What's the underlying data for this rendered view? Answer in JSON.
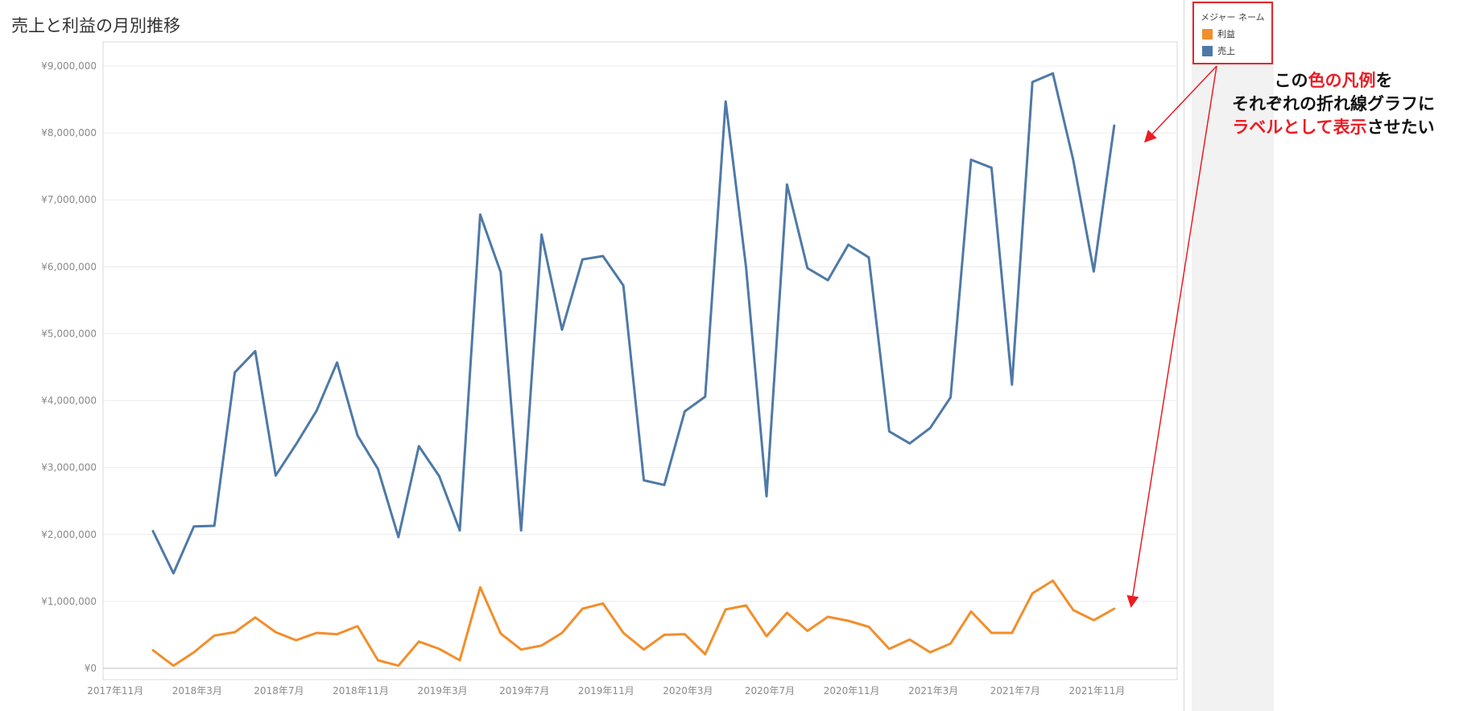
{
  "chart_data": {
    "type": "line",
    "title": "売上と利益の月別推移",
    "x_tick_labels": [
      "2017年11月",
      "2018年3月",
      "2018年7月",
      "2018年11月",
      "2019年3月",
      "2019年7月",
      "2019年11月",
      "2020年3月",
      "2020年7月",
      "2020年11月",
      "2021年3月",
      "2021年7月",
      "2021年11月"
    ],
    "y_tick_labels": [
      "¥9,000,000",
      "¥8,000,000",
      "¥7,000,000",
      "¥6,000,000",
      "¥5,000,000",
      "¥4,000,000",
      "¥3,000,000",
      "¥2,000,000",
      "¥1,000,000",
      "¥0"
    ],
    "y_ticks": [
      9000000,
      8000000,
      7000000,
      6000000,
      5000000,
      4000000,
      3000000,
      2000000,
      1000000,
      0
    ],
    "ylim": [
      0,
      9200000
    ],
    "months": [
      "2018-01",
      "2018-02",
      "2018-03",
      "2018-04",
      "2018-05",
      "2018-06",
      "2018-07",
      "2018-08",
      "2018-09",
      "2018-10",
      "2018-11",
      "2018-12",
      "2019-01",
      "2019-02",
      "2019-03",
      "2019-04",
      "2019-05",
      "2019-06",
      "2019-07",
      "2019-08",
      "2019-09",
      "2019-10",
      "2019-11",
      "2019-12",
      "2020-01",
      "2020-02",
      "2020-03",
      "2020-04",
      "2020-05",
      "2020-06",
      "2020-07",
      "2020-08",
      "2020-09",
      "2020-10",
      "2020-11",
      "2020-12",
      "2021-01",
      "2021-02",
      "2021-03",
      "2021-04",
      "2021-05",
      "2021-06",
      "2021-07",
      "2021-08",
      "2021-09",
      "2021-10",
      "2021-11",
      "2021-12"
    ],
    "series": [
      {
        "name": "売上",
        "color": "#4e79a7",
        "values": [
          2050000,
          1420000,
          2120000,
          2130000,
          4420000,
          4740000,
          2880000,
          3350000,
          3850000,
          4570000,
          3480000,
          2980000,
          1960000,
          3320000,
          2870000,
          2060000,
          6780000,
          5920000,
          2060000,
          6480000,
          5060000,
          6110000,
          6160000,
          5720000,
          2810000,
          2740000,
          3840000,
          4060000,
          8470000,
          5990000,
          2570000,
          7230000,
          5980000,
          5800000,
          6330000,
          6140000,
          3540000,
          3360000,
          3590000,
          4050000,
          7600000,
          7480000,
          4240000,
          8760000,
          8890000,
          7590000,
          5930000,
          8110000
        ]
      },
      {
        "name": "利益",
        "color": "#f28e2b",
        "values": [
          270000,
          40000,
          240000,
          490000,
          540000,
          760000,
          540000,
          420000,
          530000,
          510000,
          630000,
          120000,
          40000,
          400000,
          290000,
          120000,
          1210000,
          520000,
          280000,
          340000,
          530000,
          890000,
          970000,
          530000,
          280000,
          500000,
          510000,
          210000,
          880000,
          940000,
          480000,
          830000,
          560000,
          770000,
          710000,
          620000,
          290000,
          430000,
          240000,
          370000,
          850000,
          530000,
          530000,
          1120000,
          1310000,
          870000,
          720000,
          890000
        ]
      }
    ],
    "legend": {
      "title": "メジャー ネーム",
      "entries": [
        {
          "name": "利益",
          "color": "#f28e2b"
        },
        {
          "name": "売上",
          "color": "#4e79a7"
        }
      ],
      "position": "top-right"
    },
    "grid": true
  },
  "annotation": {
    "line1_a": "この",
    "line1_b": "色の凡例",
    "line1_c": "を",
    "line2": "それぞれの折れ線グラフに",
    "line3_a": "ラベルとして表示",
    "line3_b": "させたい",
    "highlight_color": "#ea1c24"
  }
}
